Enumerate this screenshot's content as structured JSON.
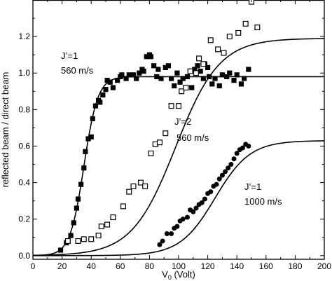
{
  "chart_data": {
    "type": "scatter",
    "xlabel_main": "V",
    "xlabel_sub": "0",
    "xlabel_rest": " (Volt)",
    "ylabel": "reflected beam / direct beam",
    "xlim": [
      0,
      200
    ],
    "ylim": [
      -0.02,
      1.4
    ],
    "xticks": [
      0,
      20,
      40,
      60,
      80,
      100,
      120,
      140,
      160,
      180,
      200
    ],
    "yticks": [
      0.0,
      0.2,
      0.4,
      0.6,
      0.8,
      1.0,
      1.2
    ],
    "ytick_labels": [
      "0.0",
      "0.2",
      "0.4",
      "0.6",
      "0.8",
      "1.0",
      "1.2"
    ],
    "grid": false,
    "series": [
      {
        "marker": "filled-square",
        "color": "#000000",
        "points": [
          [
            19,
            0.03
          ],
          [
            23,
            0.07
          ],
          [
            26,
            0.11
          ],
          [
            28,
            0.18
          ],
          [
            30,
            0.26
          ],
          [
            31,
            0.31
          ],
          [
            33,
            0.39
          ],
          [
            35,
            0.48
          ],
          [
            36,
            0.57
          ],
          [
            38,
            0.64
          ],
          [
            40,
            0.65
          ],
          [
            41,
            0.75
          ],
          [
            43,
            0.82
          ],
          [
            45,
            0.85
          ],
          [
            46,
            0.84
          ],
          [
            48,
            0.88
          ],
          [
            50,
            0.91
          ],
          [
            51,
            0.96
          ],
          [
            53,
            0.95
          ],
          [
            55,
            0.92
          ],
          [
            58,
            0.96
          ],
          [
            60,
            0.98
          ],
          [
            61,
            0.99
          ],
          [
            64,
            0.97
          ],
          [
            66,
            0.99
          ],
          [
            69,
            0.99
          ],
          [
            71,
            0.97
          ],
          [
            73,
            1.0
          ],
          [
            75,
            1.02
          ],
          [
            76,
            1.01
          ],
          [
            78,
            1.09
          ],
          [
            80,
            1.1
          ],
          [
            81,
            1.09
          ],
          [
            83,
            1.04
          ],
          [
            85,
            0.98
          ],
          [
            86,
            1.02
          ],
          [
            88,
            0.97
          ],
          [
            91,
            1.03
          ],
          [
            93,
            1.04
          ],
          [
            95,
            0.97
          ],
          [
            97,
            0.93
          ],
          [
            99,
            1.0
          ],
          [
            101,
            0.95
          ],
          [
            103,
            0.97
          ],
          [
            105,
            0.92
          ],
          [
            106,
            0.98
          ],
          [
            109,
            0.92
          ],
          [
            111,
            1.02
          ],
          [
            113,
            1.04
          ],
          [
            115,
            1.01
          ],
          [
            117,
            0.97
          ],
          [
            118,
            1.05
          ],
          [
            120,
            1.03
          ],
          [
            121,
            0.98
          ],
          [
            123,
            0.94
          ],
          [
            125,
            0.97
          ],
          [
            128,
            0.93
          ],
          [
            130,
            0.99
          ],
          [
            133,
            0.98
          ],
          [
            135,
            1.0
          ],
          [
            138,
            0.96
          ],
          [
            140,
            0.99
          ],
          [
            143,
            0.94
          ],
          [
            145,
            0.97
          ],
          [
            148,
            1.02
          ]
        ]
      },
      {
        "marker": "open-square",
        "color": "#000000",
        "points": [
          [
            24,
            0.08
          ],
          [
            31,
            0.08
          ],
          [
            35,
            0.09
          ],
          [
            40,
            0.09
          ],
          [
            45,
            0.11
          ],
          [
            47,
            0.16
          ],
          [
            51,
            0.17
          ],
          [
            55,
            0.21
          ],
          [
            62,
            0.27
          ],
          [
            66,
            0.35
          ],
          [
            69,
            0.38
          ],
          [
            74,
            0.4
          ],
          [
            77,
            0.38
          ],
          [
            81,
            0.56
          ],
          [
            84,
            0.61
          ],
          [
            87,
            0.62
          ],
          [
            91,
            0.67
          ],
          [
            95,
            0.82
          ],
          [
            100,
            0.82
          ],
          [
            102,
            0.9
          ],
          [
            105,
            0.92
          ],
          [
            108,
            1.01
          ],
          [
            112,
            1.0
          ],
          [
            114,
            1.08
          ],
          [
            117,
            1.05
          ],
          [
            122,
            1.18
          ],
          [
            127,
            1.13
          ],
          [
            131,
            1.11
          ],
          [
            135,
            1.2
          ],
          [
            141,
            1.22
          ],
          [
            146,
            1.27
          ],
          [
            150,
            1.39
          ],
          [
            154,
            1.25
          ]
        ]
      },
      {
        "marker": "filled-circle",
        "color": "#000000",
        "points": [
          [
            87,
            0.06
          ],
          [
            89,
            0.08
          ],
          [
            92,
            0.12
          ],
          [
            95,
            0.12
          ],
          [
            97,
            0.15
          ],
          [
            99,
            0.16
          ],
          [
            101,
            0.19
          ],
          [
            103,
            0.2
          ],
          [
            106,
            0.21
          ],
          [
            108,
            0.25
          ],
          [
            110,
            0.24
          ],
          [
            112,
            0.26
          ],
          [
            114,
            0.28
          ],
          [
            116,
            0.29
          ],
          [
            118,
            0.31
          ],
          [
            120,
            0.34
          ],
          [
            122,
            0.35
          ],
          [
            124,
            0.38
          ],
          [
            126,
            0.39
          ],
          [
            128,
            0.42
          ],
          [
            130,
            0.44
          ],
          [
            132,
            0.46
          ],
          [
            134,
            0.48
          ],
          [
            136,
            0.5
          ],
          [
            138,
            0.53
          ],
          [
            140,
            0.56
          ],
          [
            142,
            0.58
          ],
          [
            144,
            0.59
          ],
          [
            146,
            0.61
          ],
          [
            148,
            0.6
          ]
        ]
      }
    ],
    "curves": [
      {
        "midpoint": 35,
        "scale": 4.8,
        "plateau": 0.98
      },
      {
        "midpoint": 98,
        "scale": 15,
        "plateau": 1.19
      },
      {
        "midpoint": 125,
        "scale": 12,
        "plateau": 0.63
      }
    ],
    "annotations": [
      {
        "line1": "J’=1",
        "line2": "560 m/s"
      },
      {
        "line1": "J’=2",
        "line2": "560 m/s"
      },
      {
        "line1": "J’=1",
        "line2": "1000 m/s"
      }
    ]
  }
}
